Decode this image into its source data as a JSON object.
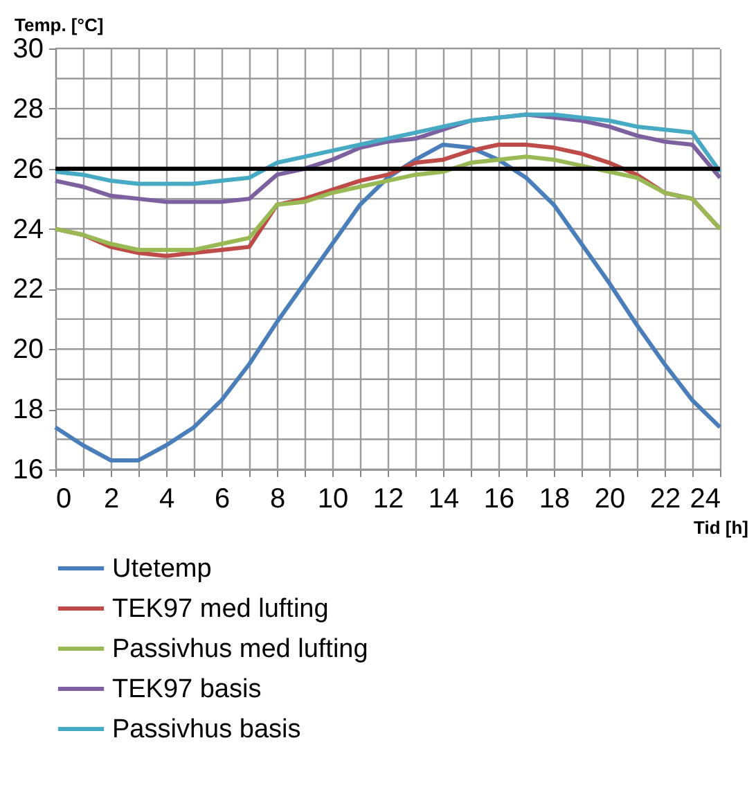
{
  "chart_data": {
    "type": "line",
    "xlabel": "Tid [h]",
    "ylabel": "Temp. [°C]",
    "x": [
      0,
      1,
      2,
      3,
      4,
      5,
      6,
      7,
      8,
      9,
      10,
      11,
      12,
      13,
      14,
      15,
      16,
      17,
      18,
      19,
      20,
      21,
      22,
      23,
      24
    ],
    "series": [
      {
        "name": "Utetemp",
        "color": "#4a7ebb",
        "values": [
          17.4,
          16.8,
          16.3,
          16.3,
          16.8,
          17.4,
          18.3,
          19.5,
          20.9,
          22.2,
          23.5,
          24.8,
          25.7,
          26.3,
          26.8,
          26.7,
          26.3,
          25.7,
          24.8,
          23.5,
          22.2,
          20.8,
          19.5,
          18.3,
          17.4
        ]
      },
      {
        "name": "TEK97 med lufting",
        "color": "#be4b48",
        "values": [
          24.0,
          23.8,
          23.4,
          23.2,
          23.1,
          23.2,
          23.3,
          23.4,
          24.8,
          25.0,
          25.3,
          25.6,
          25.8,
          26.2,
          26.3,
          26.6,
          26.8,
          26.8,
          26.7,
          26.5,
          26.2,
          25.8,
          25.2,
          25.0,
          24.0
        ]
      },
      {
        "name": "Passivhus med lufting",
        "color": "#98b954",
        "values": [
          24.0,
          23.8,
          23.5,
          23.3,
          23.3,
          23.3,
          23.5,
          23.7,
          24.8,
          24.9,
          25.2,
          25.4,
          25.6,
          25.8,
          25.9,
          26.2,
          26.3,
          26.4,
          26.3,
          26.1,
          25.9,
          25.7,
          25.2,
          25.0,
          24.0
        ]
      },
      {
        "name": "TEK97 basis",
        "color": "#7d60a0",
        "values": [
          25.6,
          25.4,
          25.1,
          25.0,
          24.9,
          24.9,
          24.9,
          25.0,
          25.8,
          26.0,
          26.3,
          26.7,
          26.9,
          27.0,
          27.3,
          27.6,
          27.7,
          27.8,
          27.7,
          27.6,
          27.4,
          27.1,
          26.9,
          26.8,
          25.7
        ]
      },
      {
        "name": "Passivhus basis",
        "color": "#46aac5",
        "values": [
          25.9,
          25.8,
          25.6,
          25.5,
          25.5,
          25.5,
          25.6,
          25.7,
          26.2,
          26.4,
          26.6,
          26.8,
          27.0,
          27.2,
          27.4,
          27.6,
          27.7,
          27.8,
          27.8,
          27.7,
          27.6,
          27.4,
          27.3,
          27.2,
          25.9
        ]
      }
    ],
    "xlim": [
      0,
      24
    ],
    "xticks": [
      0,
      {
        "value": 1,
        "label": null
      },
      2,
      {
        "value": 3,
        "label": null
      },
      4,
      {
        "value": 5,
        "label": null
      },
      6,
      {
        "value": 7,
        "label": null
      },
      8,
      {
        "value": 9,
        "label": null
      },
      10,
      {
        "value": 11,
        "label": null
      },
      12,
      {
        "value": 13,
        "label": null
      },
      14,
      {
        "value": 15,
        "label": null
      },
      16,
      {
        "value": 17,
        "label": null
      },
      18,
      {
        "value": 19,
        "label": null
      },
      20,
      {
        "value": 21,
        "label": null
      },
      22,
      {
        "value": 23,
        "label": null
      },
      24
    ],
    "ylim": [
      16,
      30
    ],
    "yticks": [
      16,
      {
        "value": 17,
        "label": null
      },
      18,
      {
        "value": 19,
        "label": null
      },
      20,
      {
        "value": 21,
        "label": null
      },
      22,
      {
        "value": 23,
        "label": null
      },
      24,
      {
        "value": 25,
        "label": null
      },
      26,
      {
        "value": 27,
        "label": null
      },
      28,
      {
        "value": 29,
        "label": null
      },
      30
    ],
    "ref_lines": [
      {
        "axis": "y",
        "value": 26,
        "color": "#000000"
      }
    ],
    "grid": true,
    "legend": "bottom",
    "marker": "none",
    "line_style": "solid"
  }
}
